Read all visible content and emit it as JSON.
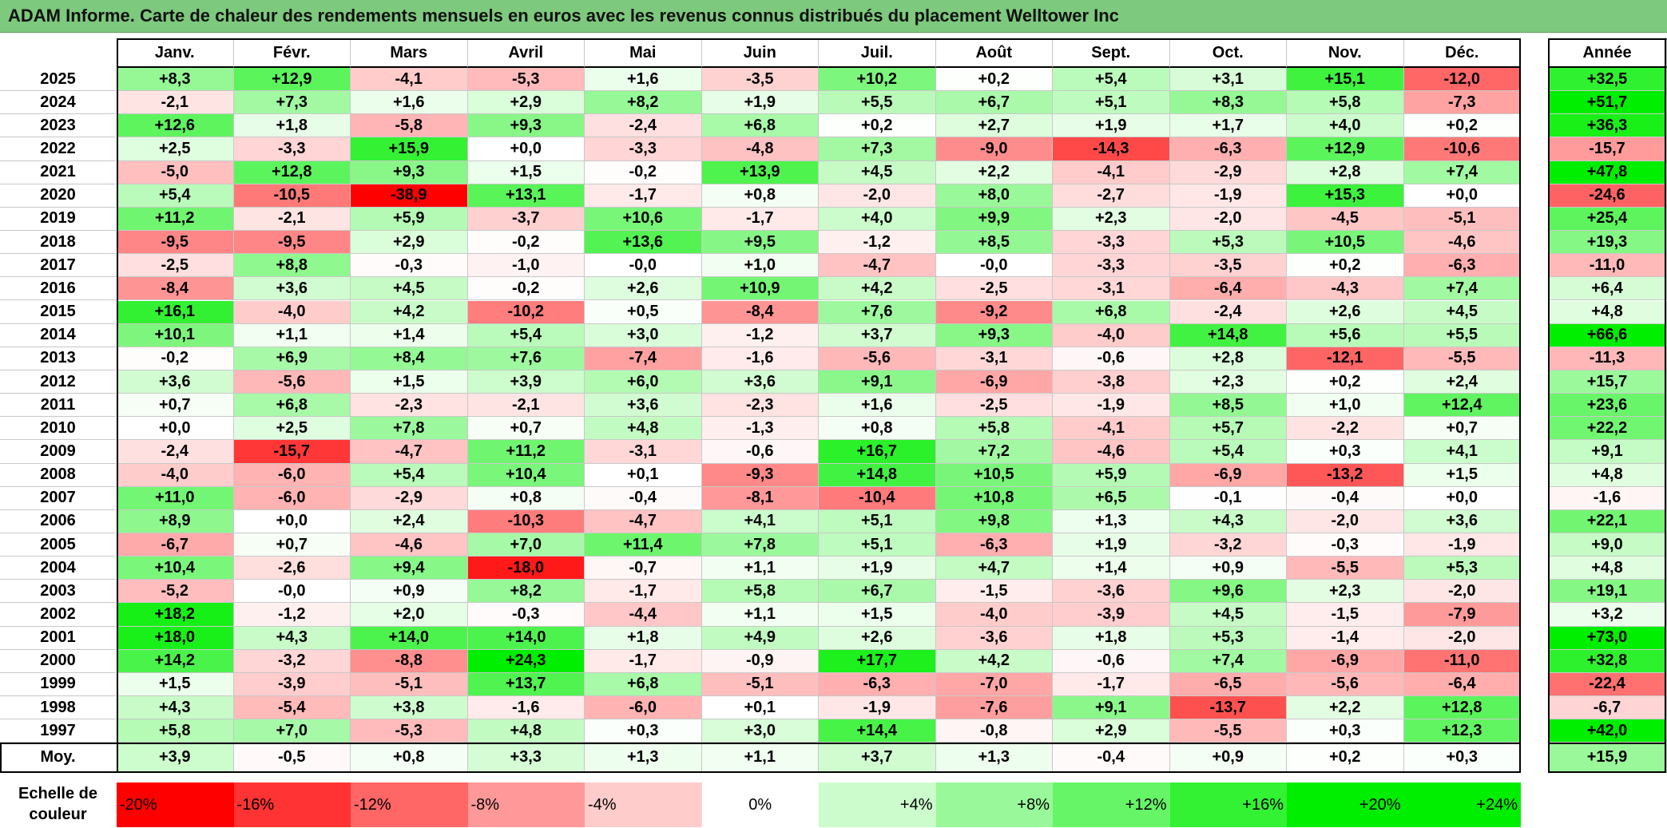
{
  "title": "ADAM Informe. Carte de chaleur des rendements mensuels en euros avec les revenus connus distribués du placement Welltower Inc",
  "chart_data": {
    "type": "heatmap",
    "columns": [
      "Janv.",
      "Févr.",
      "Mars",
      "Avril",
      "Mai",
      "Juin",
      "Juil.",
      "Août",
      "Sept.",
      "Oct.",
      "Nov.",
      "Déc."
    ],
    "annual_header": "Année",
    "rows": [
      {
        "year": "2025",
        "values": [
          "+8,3",
          "+12,9",
          "-4,1",
          "-5,3",
          "+1,6",
          "-3,5",
          "+10,2",
          "+0,2",
          "+5,4",
          "+3,1",
          "+15,1",
          "-12,0"
        ],
        "annual": "+32,5"
      },
      {
        "year": "2024",
        "values": [
          "-2,1",
          "+7,3",
          "+1,6",
          "+2,9",
          "+8,2",
          "+1,9",
          "+5,5",
          "+6,7",
          "+5,1",
          "+8,3",
          "+5,8",
          "-7,3"
        ],
        "annual": "+51,7"
      },
      {
        "year": "2023",
        "values": [
          "+12,6",
          "+1,8",
          "-5,8",
          "+9,3",
          "-2,4",
          "+6,8",
          "+0,2",
          "+2,7",
          "+1,9",
          "+1,7",
          "+4,0",
          "+0,2"
        ],
        "annual": "+36,3"
      },
      {
        "year": "2022",
        "values": [
          "+2,5",
          "-3,3",
          "+15,9",
          "+0,0",
          "-3,3",
          "-4,8",
          "+7,3",
          "-9,0",
          "-14,3",
          "-6,3",
          "+12,9",
          "-10,6"
        ],
        "annual": "-15,7"
      },
      {
        "year": "2021",
        "values": [
          "-5,0",
          "+12,8",
          "+9,3",
          "+1,5",
          "-0,2",
          "+13,9",
          "+4,5",
          "+2,2",
          "-4,1",
          "-2,9",
          "+2,8",
          "+7,4"
        ],
        "annual": "+47,8"
      },
      {
        "year": "2020",
        "values": [
          "+5,4",
          "-10,5",
          "-38,9",
          "+13,1",
          "-1,7",
          "+0,8",
          "-2,0",
          "+8,0",
          "-2,7",
          "-1,9",
          "+15,3",
          "+0,0"
        ],
        "annual": "-24,6"
      },
      {
        "year": "2019",
        "values": [
          "+11,2",
          "-2,1",
          "+5,9",
          "-3,7",
          "+10,6",
          "-1,7",
          "+4,0",
          "+9,9",
          "+2,3",
          "-2,0",
          "-4,5",
          "-5,1"
        ],
        "annual": "+25,4"
      },
      {
        "year": "2018",
        "values": [
          "-9,5",
          "-9,5",
          "+2,9",
          "-0,2",
          "+13,6",
          "+9,5",
          "-1,2",
          "+8,5",
          "-3,3",
          "+5,3",
          "+10,5",
          "-4,6"
        ],
        "annual": "+19,3"
      },
      {
        "year": "2017",
        "values": [
          "-2,5",
          "+8,8",
          "-0,3",
          "-1,0",
          "-0,0",
          "+1,0",
          "-4,7",
          "-0,0",
          "-3,3",
          "-3,5",
          "+0,2",
          "-6,3"
        ],
        "annual": "-11,0"
      },
      {
        "year": "2016",
        "values": [
          "-8,4",
          "+3,6",
          "+4,5",
          "-0,2",
          "+2,6",
          "+10,9",
          "+4,2",
          "-2,5",
          "-3,1",
          "-6,4",
          "-4,3",
          "+7,4"
        ],
        "annual": "+6,4"
      },
      {
        "year": "2015",
        "values": [
          "+16,1",
          "-4,0",
          "+4,2",
          "-10,2",
          "+0,5",
          "-8,4",
          "+7,6",
          "-9,2",
          "+6,8",
          "-2,4",
          "+2,6",
          "+4,5"
        ],
        "annual": "+4,8"
      },
      {
        "year": "2014",
        "values": [
          "+10,1",
          "+1,1",
          "+1,4",
          "+5,4",
          "+3,0",
          "-1,2",
          "+3,7",
          "+9,3",
          "-4,0",
          "+14,8",
          "+5,6",
          "+5,5"
        ],
        "annual": "+66,6"
      },
      {
        "year": "2013",
        "values": [
          "-0,2",
          "+6,9",
          "+8,4",
          "+7,6",
          "-7,4",
          "-1,6",
          "-5,6",
          "-3,1",
          "-0,6",
          "+2,8",
          "-12,1",
          "-5,5"
        ],
        "annual": "-11,3"
      },
      {
        "year": "2012",
        "values": [
          "+3,6",
          "-5,6",
          "+1,5",
          "+3,9",
          "+6,0",
          "+3,6",
          "+9,1",
          "-6,9",
          "-3,8",
          "+2,3",
          "+0,2",
          "+2,4"
        ],
        "annual": "+15,7"
      },
      {
        "year": "2011",
        "values": [
          "+0,7",
          "+6,8",
          "-2,3",
          "-2,1",
          "+3,6",
          "-2,3",
          "+1,6",
          "-2,5",
          "-1,9",
          "+8,5",
          "+1,0",
          "+12,4"
        ],
        "annual": "+23,6"
      },
      {
        "year": "2010",
        "values": [
          "+0,0",
          "+2,5",
          "+7,8",
          "+0,7",
          "+4,8",
          "-1,3",
          "+0,8",
          "+5,8",
          "-4,1",
          "+5,7",
          "-2,2",
          "+0,7"
        ],
        "annual": "+22,2"
      },
      {
        "year": "2009",
        "values": [
          "-2,4",
          "-15,7",
          "-4,7",
          "+11,2",
          "-3,1",
          "-0,6",
          "+16,7",
          "+7,2",
          "-4,6",
          "+5,4",
          "+0,3",
          "+4,1"
        ],
        "annual": "+9,1"
      },
      {
        "year": "2008",
        "values": [
          "-4,0",
          "-6,0",
          "+5,4",
          "+10,4",
          "+0,1",
          "-9,3",
          "+14,8",
          "+10,5",
          "+5,9",
          "-6,9",
          "-13,2",
          "+1,5"
        ],
        "annual": "+4,8"
      },
      {
        "year": "2007",
        "values": [
          "+11,0",
          "-6,0",
          "-2,9",
          "+0,8",
          "-0,4",
          "-8,1",
          "-10,4",
          "+10,8",
          "+6,5",
          "-0,1",
          "-0,4",
          "+0,0"
        ],
        "annual": "-1,6"
      },
      {
        "year": "2006",
        "values": [
          "+8,9",
          "+0,0",
          "+2,4",
          "-10,3",
          "-4,7",
          "+4,1",
          "+5,1",
          "+9,8",
          "+1,3",
          "+4,3",
          "-2,0",
          "+3,6"
        ],
        "annual": "+22,1"
      },
      {
        "year": "2005",
        "values": [
          "-6,7",
          "+0,7",
          "-4,6",
          "+7,0",
          "+11,4",
          "+7,8",
          "+5,1",
          "-6,3",
          "+1,9",
          "-3,2",
          "-0,3",
          "-1,9"
        ],
        "annual": "+9,0"
      },
      {
        "year": "2004",
        "values": [
          "+10,4",
          "-2,6",
          "+9,4",
          "-18,0",
          "-0,7",
          "+1,1",
          "+1,9",
          "+4,7",
          "+1,4",
          "+0,9",
          "-5,5",
          "+5,3"
        ],
        "annual": "+4,8"
      },
      {
        "year": "2003",
        "values": [
          "-5,2",
          "-0,0",
          "+0,9",
          "+8,2",
          "-1,7",
          "+5,8",
          "+6,7",
          "-1,5",
          "-3,6",
          "+9,6",
          "+2,3",
          "-2,0"
        ],
        "annual": "+19,1"
      },
      {
        "year": "2002",
        "values": [
          "+18,2",
          "-1,2",
          "+2,0",
          "-0,3",
          "-4,4",
          "+1,1",
          "+1,5",
          "-4,0",
          "-3,9",
          "+4,5",
          "-1,5",
          "-7,9"
        ],
        "annual": "+3,2"
      },
      {
        "year": "2001",
        "values": [
          "+18,0",
          "+4,3",
          "+14,0",
          "+14,0",
          "+1,8",
          "+4,9",
          "+2,6",
          "-3,6",
          "+1,8",
          "+5,3",
          "-1,4",
          "-2,0"
        ],
        "annual": "+73,0"
      },
      {
        "year": "2000",
        "values": [
          "+14,2",
          "-3,2",
          "-8,8",
          "+24,3",
          "-1,7",
          "-0,9",
          "+17,7",
          "+4,2",
          "-0,6",
          "+7,4",
          "-6,9",
          "-11,0"
        ],
        "annual": "+32,8"
      },
      {
        "year": "1999",
        "values": [
          "+1,5",
          "-3,9",
          "-5,1",
          "+13,7",
          "+6,8",
          "-5,1",
          "-6,3",
          "-7,0",
          "-1,7",
          "-6,5",
          "-5,6",
          "-6,4"
        ],
        "annual": "-22,4"
      },
      {
        "year": "1998",
        "values": [
          "+4,3",
          "-5,4",
          "+3,8",
          "-1,6",
          "-6,0",
          "+0,1",
          "-1,9",
          "-7,6",
          "+9,1",
          "-13,7",
          "+2,2",
          "+12,8"
        ],
        "annual": "-6,7"
      },
      {
        "year": "1997",
        "values": [
          "+5,8",
          "+7,0",
          "-5,3",
          "+4,8",
          "+0,3",
          "+3,0",
          "+14,4",
          "-0,8",
          "+2,9",
          "-5,5",
          "+0,3",
          "+12,3"
        ],
        "annual": "+42,0"
      }
    ],
    "average": {
      "label": "Moy.",
      "values": [
        "+3,9",
        "-0,5",
        "+0,8",
        "+3,3",
        "+1,3",
        "+1,1",
        "+3,7",
        "+1,3",
        "-0,4",
        "+0,9",
        "+0,2",
        "+0,3"
      ],
      "annual": "+15,9"
    },
    "scale": {
      "label_line1": "Echelle de",
      "label_line2": "couleur",
      "steps": [
        "-20%",
        "-16%",
        "-12%",
        "-8%",
        "-4%",
        "0%",
        "+4%",
        "+8%",
        "+12%",
        "+16%",
        "+20%",
        "+24%"
      ]
    },
    "colors": {
      "negative_max": "#ff0000",
      "neutral": "#ffffff",
      "positive_max": "#00ee00",
      "title_bar": "#7dc97d"
    }
  }
}
